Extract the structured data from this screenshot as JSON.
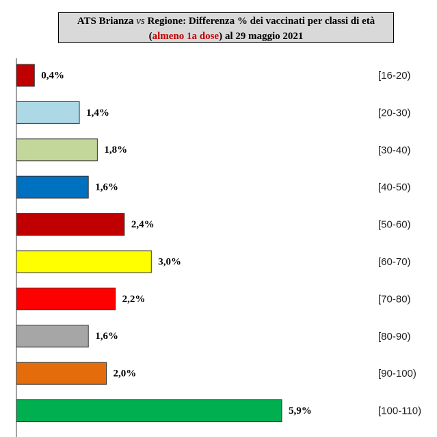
{
  "chart_data": {
    "type": "bar",
    "orientation": "horizontal",
    "title": [
      "ATS Brianza ",
      "vs",
      " Regione: Differenza % dei vaccinati per classi di età (",
      "almeno 1a dose",
      ") al 29 maggio 2021"
    ],
    "categories": [
      "[16-20)",
      "[20-30)",
      "[30-40)",
      "[40-50)",
      "[50-60)",
      "[60-70)",
      "[70-80)",
      "[80-90)",
      "[90-100)",
      "[100-110)"
    ],
    "values": [
      0.4,
      1.4,
      1.8,
      1.6,
      2.4,
      3.0,
      2.2,
      1.6,
      2.0,
      5.9
    ],
    "value_labels": [
      "0,4%",
      "1,4%",
      "1,8%",
      "1,6%",
      "2,4%",
      "3,0%",
      "2,2%",
      "1,6%",
      "2,0%",
      "5,9%"
    ],
    "colors": [
      "#c00000",
      "#add8e6",
      "#c4d79b",
      "#0070c0",
      "#c00000",
      "#ffff00",
      "#ff0000",
      "#a6a6a6",
      "#e46c0a",
      "#00b050"
    ]
  }
}
